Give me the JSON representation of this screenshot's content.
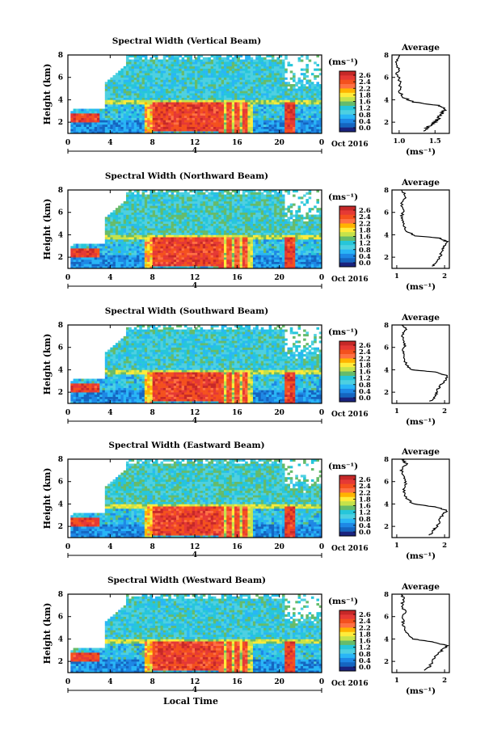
{
  "chart_data": [
    {
      "type": "heatmap",
      "title": "Spectral Width (Vertical Beam)",
      "xlabel": "",
      "ylabel": "Height (km)",
      "xlim": [
        0,
        24
      ],
      "ylim": [
        1,
        8
      ],
      "xticks": [
        "0",
        "4",
        "8",
        "12",
        "16",
        "20",
        "0"
      ],
      "yticks": [
        "2",
        "4",
        "6",
        "8"
      ],
      "colorbar": {
        "label": "(ms⁻¹)",
        "ticks": [
          "2.6",
          "2.4",
          "2.2",
          "1.8",
          "1.6",
          "1.2",
          "0.8",
          "0.4",
          "0.0"
        ],
        "range": [
          0,
          2.8
        ]
      },
      "date_label": "Oct 2016",
      "day_marker": "4",
      "profile": {
        "title": "Average",
        "xlabel": "(ms⁻¹)",
        "xticks": [
          "1.0",
          "1.5"
        ],
        "xlim": [
          0.9,
          1.7
        ],
        "yticks": [
          "2",
          "4",
          "6",
          "8"
        ],
        "ylim": [
          1,
          8
        ],
        "points": [
          [
            1.35,
            1.2
          ],
          [
            1.4,
            1.6
          ],
          [
            1.5,
            2.0
          ],
          [
            1.55,
            2.4
          ],
          [
            1.6,
            2.8
          ],
          [
            1.65,
            3.2
          ],
          [
            1.55,
            3.5
          ],
          [
            1.2,
            3.8
          ],
          [
            1.05,
            4.2
          ],
          [
            1.0,
            4.8
          ],
          [
            1.02,
            5.5
          ],
          [
            0.98,
            6.2
          ],
          [
            1.0,
            6.8
          ],
          [
            0.97,
            7.5
          ],
          [
            1.0,
            8.0
          ]
        ]
      }
    },
    {
      "type": "heatmap",
      "title": "Spectral Width (Northward Beam)",
      "xlabel": "",
      "ylabel": "Height (km)",
      "xlim": [
        0,
        24
      ],
      "ylim": [
        1,
        8
      ],
      "xticks": [
        "0",
        "4",
        "8",
        "12",
        "16",
        "20",
        "0"
      ],
      "yticks": [
        "2",
        "4",
        "6",
        "8"
      ],
      "colorbar": {
        "label": "(ms⁻¹)",
        "ticks": [
          "2.6",
          "2.4",
          "2.2",
          "1.8",
          "1.6",
          "1.2",
          "0.8",
          "0.4",
          "0.0"
        ],
        "range": [
          0,
          2.8
        ]
      },
      "date_label": "Oct 2016",
      "day_marker": "4",
      "profile": {
        "title": "Average",
        "xlabel": "(ms⁻¹)",
        "xticks": [
          "1",
          "2"
        ],
        "xlim": [
          0.9,
          2.1
        ],
        "yticks": [
          "2",
          "4",
          "6",
          "8"
        ],
        "ylim": [
          1,
          8
        ],
        "points": [
          [
            1.75,
            1.2
          ],
          [
            1.85,
            1.6
          ],
          [
            1.9,
            2.0
          ],
          [
            1.95,
            2.6
          ],
          [
            2.0,
            3.0
          ],
          [
            2.05,
            3.4
          ],
          [
            1.9,
            3.7
          ],
          [
            1.4,
            3.9
          ],
          [
            1.2,
            4.3
          ],
          [
            1.15,
            5.0
          ],
          [
            1.1,
            5.6
          ],
          [
            1.15,
            6.2
          ],
          [
            1.1,
            6.8
          ],
          [
            1.2,
            7.4
          ],
          [
            1.1,
            8.0
          ]
        ]
      }
    },
    {
      "type": "heatmap",
      "title": "Spectral Width (Southward Beam)",
      "xlabel": "",
      "ylabel": "Height (km)",
      "xlim": [
        0,
        24
      ],
      "ylim": [
        1,
        8
      ],
      "xticks": [
        "0",
        "4",
        "8",
        "12",
        "16",
        "20",
        "0"
      ],
      "yticks": [
        "2",
        "4",
        "6",
        "8"
      ],
      "colorbar": {
        "label": "(ms⁻¹)",
        "ticks": [
          "2.6",
          "2.4",
          "2.2",
          "1.8",
          "1.6",
          "1.2",
          "0.8",
          "0.4",
          "0.0"
        ],
        "range": [
          0,
          2.8
        ]
      },
      "date_label": "Oct 2016",
      "day_marker": "4",
      "profile": {
        "title": "Average",
        "xlabel": "(ms⁻¹)",
        "xticks": [
          "1",
          "2"
        ],
        "xlim": [
          0.9,
          2.1
        ],
        "yticks": [
          "2",
          "4",
          "6",
          "8"
        ],
        "ylim": [
          1,
          8
        ],
        "points": [
          [
            1.7,
            1.2
          ],
          [
            1.8,
            1.6
          ],
          [
            1.85,
            2.1
          ],
          [
            1.9,
            2.6
          ],
          [
            2.0,
            3.0
          ],
          [
            2.05,
            3.5
          ],
          [
            1.8,
            3.8
          ],
          [
            1.3,
            4.0
          ],
          [
            1.2,
            4.5
          ],
          [
            1.15,
            5.2
          ],
          [
            1.12,
            5.8
          ],
          [
            1.18,
            6.3
          ],
          [
            1.1,
            7.0
          ],
          [
            1.2,
            7.6
          ],
          [
            1.1,
            8.0
          ]
        ]
      }
    },
    {
      "type": "heatmap",
      "title": "Spectral Width (Eastward Beam)",
      "xlabel": "",
      "ylabel": "Height (km)",
      "xlim": [
        0,
        24
      ],
      "ylim": [
        1,
        8
      ],
      "xticks": [
        "0",
        "4",
        "8",
        "12",
        "16",
        "20",
        "0"
      ],
      "yticks": [
        "2",
        "4",
        "6",
        "8"
      ],
      "colorbar": {
        "label": "(ms⁻¹)",
        "ticks": [
          "2.6",
          "2.4",
          "2.2",
          "1.8",
          "1.6",
          "1.2",
          "0.8",
          "0.4",
          "0.0"
        ],
        "range": [
          0,
          2.8
        ]
      },
      "date_label": "Oct 2016",
      "day_marker": "4",
      "profile": {
        "title": "Average",
        "xlabel": "(ms⁻¹)",
        "xticks": [
          "1",
          "2"
        ],
        "xlim": [
          0.9,
          2.1
        ],
        "yticks": [
          "2",
          "4",
          "6",
          "8"
        ],
        "ylim": [
          1,
          8
        ],
        "points": [
          [
            1.7,
            1.2
          ],
          [
            1.75,
            1.6
          ],
          [
            1.85,
            2.0
          ],
          [
            1.9,
            2.6
          ],
          [
            1.95,
            3.0
          ],
          [
            2.05,
            3.4
          ],
          [
            1.85,
            3.7
          ],
          [
            1.35,
            4.0
          ],
          [
            1.2,
            4.5
          ],
          [
            1.15,
            5.2
          ],
          [
            1.2,
            5.8
          ],
          [
            1.15,
            6.4
          ],
          [
            1.1,
            7.0
          ],
          [
            1.2,
            7.6
          ],
          [
            1.1,
            8.0
          ]
        ]
      }
    },
    {
      "type": "heatmap",
      "title": "Spectral Width (Westward Beam)",
      "xlabel": "Local Time",
      "ylabel": "Height (km)",
      "xlim": [
        0,
        24
      ],
      "ylim": [
        1,
        8
      ],
      "xticks": [
        "0",
        "4",
        "8",
        "12",
        "16",
        "20",
        "0"
      ],
      "yticks": [
        "2",
        "4",
        "6",
        "8"
      ],
      "colorbar": {
        "label": "(ms⁻¹)",
        "ticks": [
          "2.6",
          "2.4",
          "2.2",
          "1.8",
          "1.6",
          "1.2",
          "0.8",
          "0.4",
          "0.0"
        ],
        "range": [
          0,
          2.8
        ]
      },
      "date_label": "Oct 2016",
      "day_marker": "4",
      "profile": {
        "title": "Average",
        "xlabel": "(ms⁻¹)",
        "xticks": [
          "1",
          "2"
        ],
        "xlim": [
          0.9,
          2.1
        ],
        "yticks": [
          "2",
          "4",
          "6",
          "8"
        ],
        "ylim": [
          1,
          8
        ],
        "points": [
          [
            1.6,
            1.2
          ],
          [
            1.7,
            1.6
          ],
          [
            1.75,
            2.1
          ],
          [
            1.85,
            2.6
          ],
          [
            1.95,
            3.0
          ],
          [
            2.05,
            3.4
          ],
          [
            1.8,
            3.7
          ],
          [
            1.35,
            4.0
          ],
          [
            1.2,
            4.6
          ],
          [
            1.15,
            5.2
          ],
          [
            1.12,
            5.8
          ],
          [
            1.18,
            6.4
          ],
          [
            1.1,
            7.0
          ],
          [
            1.15,
            7.6
          ],
          [
            1.1,
            8.0
          ]
        ]
      }
    }
  ],
  "colors": {
    "colormap": [
      "#1a237e",
      "#1565c0",
      "#1e88e5",
      "#29b6f6",
      "#4dd0e1",
      "#26c6da",
      "#66bb6a",
      "#c6e24a",
      "#ffeb3b",
      "#ffb300",
      "#ff7043",
      "#f4511e",
      "#e53935",
      "#c62828"
    ],
    "background": "#ffffff",
    "axis": "#000000"
  }
}
